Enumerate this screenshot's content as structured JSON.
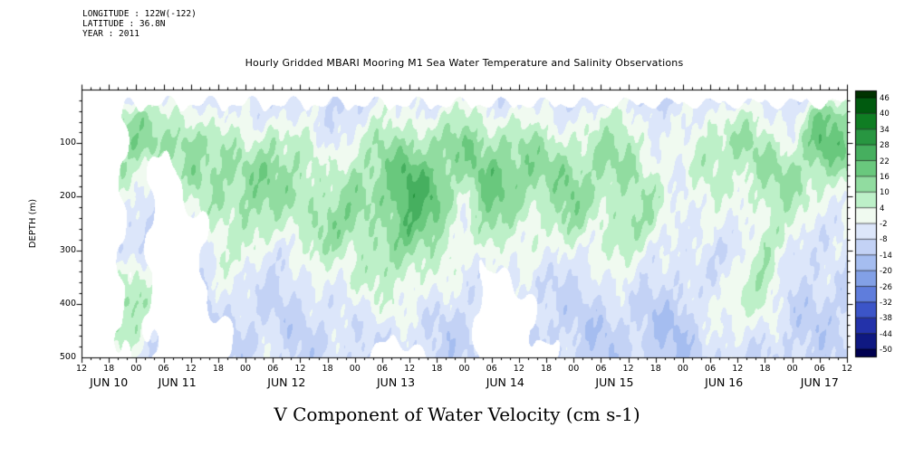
{
  "header": {
    "longitude": "LONGITUDE : 122W(-122)",
    "latitude": "LATITUDE : 36.8N",
    "year": "YEAR : 2011"
  },
  "title": "Hourly Gridded MBARI Mooring M1 Sea Water Temperature and Salinity Observations",
  "caption": "V Component of Water Velocity (cm s-1)",
  "chart_data": {
    "type": "heatmap",
    "title": "Hourly Gridded MBARI Mooring M1 Sea Water Temperature and Salinity Observations",
    "xlabel": "V Component of Water Velocity (cm s-1)",
    "ylabel": "DEPTH (m)",
    "units": "cm s-1",
    "ylim": [
      0,
      500
    ],
    "y_ticks": [
      100,
      200,
      300,
      400,
      500
    ],
    "time_start": "JUN 10 12:00",
    "time_step_hours": 6,
    "x_hour_ticks": [
      "12",
      "18",
      "00",
      "06",
      "12",
      "18",
      "00",
      "06",
      "12",
      "18",
      "00",
      "06",
      "12",
      "18",
      "00",
      "06",
      "12",
      "18",
      "00",
      "06",
      "12",
      "18",
      "00",
      "06",
      "12",
      "18",
      "00",
      "06",
      "12"
    ],
    "x_day_labels": [
      "JUN 10",
      "JUN 11",
      "JUN 12",
      "JUN 13",
      "JUN 14",
      "JUN 15",
      "JUN 16",
      "JUN 17"
    ],
    "x_day_tick_index": [
      1,
      3.5,
      7.5,
      11.5,
      15.5,
      19.5,
      23.5,
      27
    ],
    "depths": [
      0,
      50,
      100,
      150,
      200,
      250,
      300,
      350,
      400,
      450,
      500
    ],
    "values_note": "columns = 6-hourly time steps, rows = depth 0..500 m, values estimated (cm/s); white = missing",
    "values": [
      [
        -6,
        -6,
        -6,
        -6,
        -6,
        -8,
        -8,
        -8,
        -8,
        -8,
        -8
      ],
      [
        -6,
        12,
        16,
        8,
        -2,
        -6,
        -4,
        6,
        14,
        8,
        -2
      ],
      [
        -6,
        12,
        16,
        8,
        -2,
        -6,
        -4,
        6,
        14,
        8,
        -2
      ],
      [
        -8,
        4,
        8,
        0,
        -6,
        -8,
        -8,
        -8,
        -8,
        -8,
        -8
      ],
      [
        -6,
        6,
        16,
        12,
        2,
        -6,
        -8,
        -8,
        -8,
        -8,
        -8
      ],
      [
        -8,
        -2,
        8,
        14,
        12,
        8,
        4,
        -2,
        -6,
        -8,
        -8
      ],
      [
        -8,
        -4,
        2,
        10,
        12,
        8,
        2,
        -4,
        -8,
        -10,
        -8
      ],
      [
        -6,
        0,
        12,
        16,
        10,
        4,
        -2,
        -6,
        -8,
        -8,
        -6
      ],
      [
        -8,
        -4,
        4,
        10,
        14,
        8,
        0,
        -6,
        -8,
        -10,
        -8
      ],
      [
        -10,
        -6,
        -4,
        0,
        6,
        12,
        8,
        0,
        -6,
        -8,
        -8
      ],
      [
        -8,
        -4,
        4,
        10,
        12,
        10,
        8,
        6,
        0,
        -6,
        -8
      ],
      [
        -6,
        0,
        8,
        14,
        16,
        12,
        8,
        4,
        0,
        -4,
        -8
      ],
      [
        -6,
        2,
        12,
        20,
        22,
        18,
        12,
        6,
        0,
        -6,
        -8
      ],
      [
        -8,
        0,
        10,
        18,
        20,
        16,
        10,
        2,
        -4,
        -8,
        -10
      ],
      [
        -6,
        6,
        14,
        10,
        4,
        0,
        -4,
        -6,
        -8,
        -10,
        -8
      ],
      [
        -6,
        2,
        12,
        18,
        16,
        10,
        4,
        -2,
        -8,
        -10,
        -8
      ],
      [
        -8,
        0,
        10,
        16,
        14,
        8,
        2,
        -4,
        -8,
        -8,
        -8
      ],
      [
        -8,
        -2,
        8,
        12,
        8,
        2,
        -4,
        -8,
        -10,
        -10,
        -8
      ],
      [
        -8,
        -2,
        6,
        12,
        14,
        10,
        2,
        -4,
        -8,
        -10,
        -10
      ],
      [
        -8,
        0,
        8,
        12,
        10,
        6,
        0,
        -6,
        -10,
        -12,
        -10
      ],
      [
        -8,
        4,
        10,
        8,
        6,
        8,
        6,
        0,
        -6,
        -10,
        -10
      ],
      [
        -10,
        -4,
        0,
        4,
        8,
        6,
        0,
        -6,
        -10,
        -12,
        -12
      ],
      [
        -10,
        -6,
        -4,
        -2,
        0,
        -2,
        -6,
        -8,
        -12,
        -14,
        -12
      ],
      [
        -8,
        2,
        10,
        6,
        0,
        -4,
        -6,
        -4,
        0,
        -6,
        -10
      ],
      [
        -8,
        6,
        12,
        8,
        2,
        -2,
        -4,
        0,
        6,
        2,
        -6
      ],
      [
        -10,
        -2,
        6,
        10,
        8,
        4,
        6,
        8,
        2,
        -4,
        -8
      ],
      [
        -8,
        -2,
        4,
        10,
        8,
        2,
        -2,
        -4,
        -8,
        -10,
        -10
      ],
      [
        -4,
        16,
        20,
        12,
        4,
        -2,
        -6,
        -8,
        -10,
        -10,
        -8
      ],
      [
        -6,
        10,
        14,
        8,
        0,
        -4,
        -8,
        -10,
        -12,
        -10,
        -8
      ]
    ],
    "mask": [
      [
        0,
        0,
        0,
        0,
        0,
        0,
        0,
        0,
        0,
        0,
        0
      ],
      [
        0,
        0,
        0,
        0,
        0,
        0,
        0,
        0,
        0,
        0,
        0
      ],
      [
        0,
        1,
        1,
        1,
        1,
        1,
        1,
        1,
        1,
        1,
        1
      ],
      [
        0,
        1,
        1,
        0,
        0,
        0,
        0,
        0,
        0,
        0,
        0
      ],
      [
        0,
        1,
        1,
        1,
        1,
        0,
        0,
        0,
        0,
        0,
        0
      ],
      [
        0,
        1,
        1,
        1,
        1,
        1,
        1,
        1,
        1,
        0,
        0
      ],
      [
        0,
        1,
        1,
        1,
        1,
        1,
        1,
        1,
        1,
        1,
        1
      ],
      [
        0,
        1,
        1,
        1,
        1,
        1,
        1,
        1,
        1,
        1,
        1
      ],
      [
        0,
        1,
        1,
        1,
        1,
        1,
        1,
        1,
        1,
        1,
        1
      ],
      [
        0,
        1,
        1,
        1,
        1,
        1,
        1,
        1,
        1,
        1,
        1
      ],
      [
        0,
        1,
        1,
        1,
        1,
        1,
        1,
        1,
        1,
        1,
        1
      ],
      [
        0,
        1,
        1,
        1,
        1,
        1,
        1,
        1,
        1,
        1,
        0
      ],
      [
        0,
        1,
        1,
        1,
        1,
        1,
        1,
        1,
        1,
        1,
        0
      ],
      [
        0,
        1,
        1,
        1,
        1,
        1,
        1,
        1,
        1,
        1,
        1
      ],
      [
        0,
        1,
        1,
        1,
        1,
        1,
        1,
        1,
        1,
        1,
        1
      ],
      [
        0,
        1,
        1,
        1,
        1,
        1,
        1,
        0,
        0,
        0,
        0
      ],
      [
        0,
        1,
        1,
        1,
        1,
        1,
        1,
        1,
        0,
        0,
        0
      ],
      [
        0,
        1,
        1,
        1,
        1,
        1,
        1,
        1,
        1,
        1,
        0
      ],
      [
        0,
        1,
        1,
        1,
        1,
        1,
        1,
        1,
        1,
        1,
        1
      ],
      [
        0,
        1,
        1,
        1,
        1,
        1,
        1,
        1,
        1,
        1,
        1
      ],
      [
        0,
        1,
        1,
        1,
        1,
        1,
        1,
        1,
        1,
        1,
        1
      ],
      [
        0,
        1,
        1,
        1,
        1,
        1,
        1,
        1,
        1,
        1,
        1
      ],
      [
        0,
        1,
        1,
        1,
        1,
        1,
        1,
        1,
        1,
        1,
        1
      ],
      [
        0,
        1,
        1,
        1,
        1,
        1,
        1,
        1,
        1,
        1,
        1
      ],
      [
        0,
        1,
        1,
        1,
        1,
        1,
        1,
        1,
        1,
        1,
        1
      ],
      [
        0,
        1,
        1,
        1,
        1,
        1,
        1,
        1,
        1,
        1,
        1
      ],
      [
        0,
        1,
        1,
        1,
        1,
        1,
        1,
        1,
        1,
        1,
        1
      ],
      [
        0,
        1,
        1,
        1,
        1,
        1,
        1,
        1,
        1,
        1,
        1
      ],
      [
        0,
        1,
        1,
        1,
        1,
        1,
        1,
        1,
        1,
        1,
        1
      ]
    ],
    "colorbar": {
      "ticks": [
        46,
        40,
        34,
        28,
        22,
        16,
        10,
        4,
        -2,
        -8,
        -14,
        -20,
        -26,
        -32,
        -38,
        -44,
        -50
      ],
      "band_colors": [
        "#003200",
        "#005a0f",
        "#0f7d23",
        "#289641",
        "#46af5f",
        "#69c87d",
        "#91dca0",
        "#bdf0c8",
        "#f0faf0",
        "#dce6fa",
        "#c3d2f5",
        "#a5bdf0",
        "#82a0e6",
        "#5f7ddc",
        "#3c55c8",
        "#2332aa",
        "#0f1982",
        "#000050"
      ],
      "missing_color": "#ffffff"
    },
    "legend_position": "right",
    "grid": false
  }
}
